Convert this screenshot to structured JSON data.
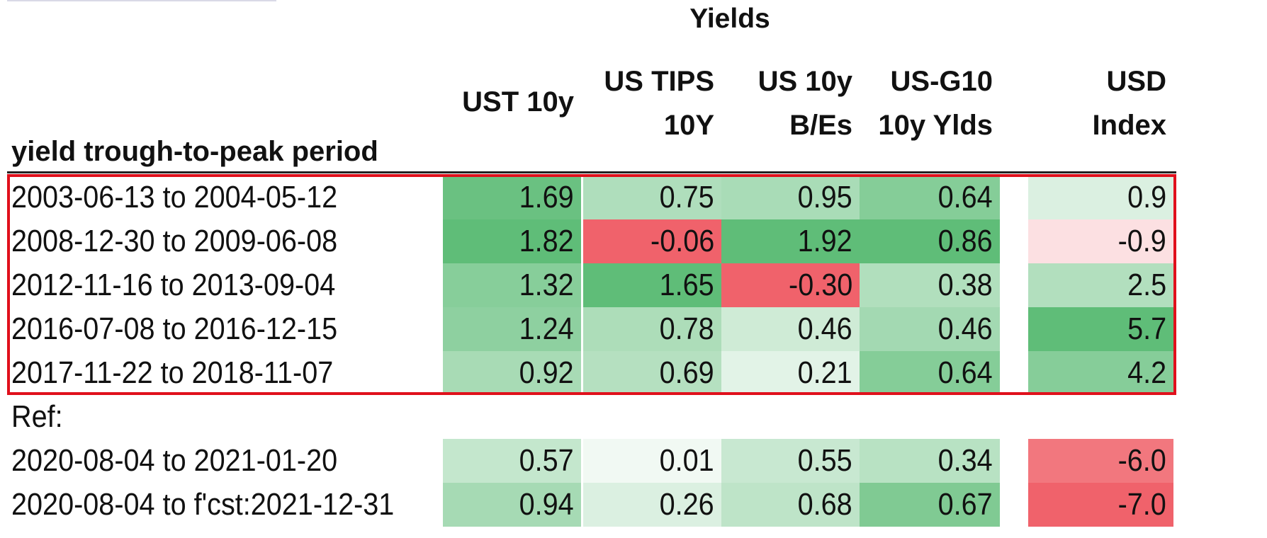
{
  "chart_data": {
    "type": "table",
    "title": "Yields",
    "row_header": "yield trough-to-peak period",
    "columns": [
      "UST 10y",
      "US TIPS\n10Y",
      "US 10y\nB/Es",
      "US-G10\n10y Ylds",
      "USD\nIndex"
    ],
    "rows": [
      {
        "label": "2003-06-13 to 2004-05-12",
        "values": [
          "1.69",
          "0.75",
          "0.95",
          "0.64",
          "0.9"
        ]
      },
      {
        "label": "2008-12-30 to 2009-06-08",
        "values": [
          "1.82",
          "-0.06",
          "1.92",
          "0.86",
          "-0.9"
        ]
      },
      {
        "label": "2012-11-16 to 2013-09-04",
        "values": [
          "1.32",
          "1.65",
          "-0.30",
          "0.38",
          "2.5"
        ]
      },
      {
        "label": "2016-07-08 to 2016-12-15",
        "values": [
          "1.24",
          "0.78",
          "0.46",
          "0.46",
          "5.7"
        ]
      },
      {
        "label": "2017-11-22 to 2018-11-07",
        "values": [
          "0.92",
          "0.69",
          "0.21",
          "0.64",
          "4.2"
        ]
      }
    ],
    "ref_label": "Ref:",
    "ref_rows": [
      {
        "label": "2020-08-04 to 2021-01-20",
        "values": [
          "0.57",
          "0.01",
          "0.55",
          "0.34",
          "-6.0"
        ]
      },
      {
        "label": "2020-08-04 to f'cst:2021-12-31",
        "values": [
          "0.94",
          "0.26",
          "0.68",
          "0.67",
          "-7.0"
        ]
      }
    ],
    "colors": {
      "positive": "#5fbd78",
      "negative": "#f0626b",
      "neutral": "#ffffff",
      "highlight_border": "#e0101c"
    }
  }
}
